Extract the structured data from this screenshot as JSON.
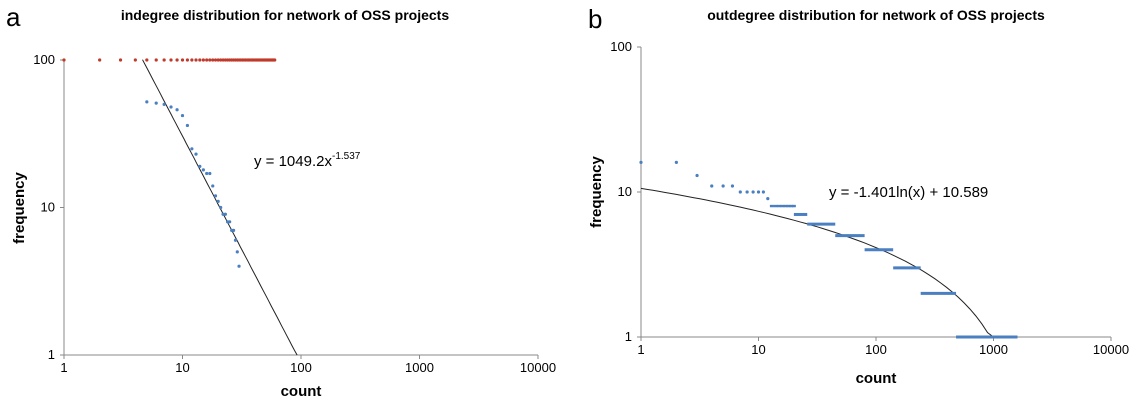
{
  "colors": {
    "blue": "#4a7fc1",
    "red": "#c0392b",
    "axis": "#888888",
    "trend": "#222222"
  },
  "chart_data": [
    {
      "panel": "a",
      "type": "scatter",
      "title": "indegree distribution for network of OSS projects",
      "xlabel": "count",
      "ylabel": "frequency",
      "xscale": "log",
      "yscale": "log",
      "xlim": [
        1,
        10000
      ],
      "ylim": [
        1,
        100
      ],
      "xticks": [
        "1",
        "10",
        "100",
        "1000",
        "10000"
      ],
      "yticks": [
        "1",
        "10",
        "100"
      ],
      "annotation": {
        "text": "y = 1049.2x",
        "sup": "-1.537"
      },
      "trendline": {
        "a": 1049.2,
        "b": -1.537,
        "x_from": 4.6,
        "x_to": 92.7
      },
      "series": [
        {
          "color": "red",
          "marker": "dot",
          "x": [
            1,
            2,
            3,
            4,
            5,
            6,
            7,
            8,
            9,
            10,
            11,
            12,
            13,
            14,
            15,
            16,
            17,
            18,
            19,
            20,
            21,
            22,
            23,
            24,
            25,
            26,
            27,
            28,
            29,
            30,
            31,
            32,
            33,
            34,
            35,
            36,
            37,
            38,
            39,
            40,
            41,
            42,
            43,
            44,
            45,
            46,
            47,
            48,
            49,
            50,
            51,
            52,
            53,
            54,
            55,
            56,
            57,
            58,
            59,
            60
          ],
          "y": [
            100,
            100,
            100,
            100,
            100,
            100,
            100,
            100,
            100,
            100,
            100,
            100,
            100,
            100,
            100,
            100,
            100,
            100,
            100,
            100,
            100,
            100,
            100,
            100,
            100,
            100,
            100,
            100,
            100,
            100,
            100,
            100,
            100,
            100,
            100,
            100,
            100,
            100,
            100,
            100,
            100,
            100,
            100,
            100,
            100,
            100,
            100,
            100,
            100,
            100,
            100,
            100,
            100,
            100,
            100,
            100,
            100,
            100,
            100,
            100
          ]
        },
        {
          "color": "blue",
          "marker": "dot",
          "x": [
            5,
            6,
            7,
            8,
            9,
            10,
            11,
            12,
            13,
            14,
            15,
            16,
            17,
            18,
            19,
            20,
            21,
            22,
            23,
            24,
            25,
            26,
            27,
            28,
            29,
            30
          ],
          "y": [
            52,
            51,
            50,
            48,
            46,
            42,
            36,
            25,
            23,
            19,
            18,
            17,
            17,
            14,
            12,
            11,
            10,
            9,
            9,
            8,
            8,
            7,
            7,
            6,
            5,
            4
          ]
        }
      ]
    },
    {
      "panel": "b",
      "type": "scatter",
      "title": "outdegree distribution for network of OSS projects",
      "xlabel": "count",
      "ylabel": "frequency",
      "xscale": "log",
      "yscale": "log",
      "xlim": [
        1,
        10000
      ],
      "ylim": [
        1,
        100
      ],
      "xticks": [
        "1",
        "10",
        "100",
        "1000",
        "10000"
      ],
      "yticks": [
        "1",
        "10",
        "100"
      ],
      "annotation": {
        "text": "y = -1.401ln(x) + 10.589",
        "sup": ""
      },
      "trendline": {
        "a": -1.401,
        "b": 10.589,
        "x_from": 1,
        "x_to": 1000
      },
      "series": [
        {
          "color": "blue",
          "marker": "dot",
          "x": [
            1,
            2,
            3,
            4,
            5,
            6,
            7,
            8,
            9,
            10,
            11,
            12
          ],
          "y": [
            16,
            16,
            13,
            11,
            11,
            11,
            10,
            10,
            10,
            10,
            10,
            9
          ]
        },
        {
          "color": "blue",
          "marker": "dash",
          "x": [
            13,
            14,
            15,
            16,
            17,
            18,
            19,
            20
          ],
          "y": [
            8,
            8,
            8,
            8,
            8,
            8,
            8,
            8
          ]
        },
        {
          "color": "blue",
          "marker": "segment",
          "segments": [
            {
              "x1": 20,
              "x2": 26,
              "y": 7
            },
            {
              "x1": 26,
              "x2": 45,
              "y": 6
            },
            {
              "x1": 45,
              "x2": 80,
              "y": 5
            },
            {
              "x1": 80,
              "x2": 140,
              "y": 4
            },
            {
              "x1": 140,
              "x2": 240,
              "y": 3
            },
            {
              "x1": 240,
              "x2": 480,
              "y": 2
            },
            {
              "x1": 480,
              "x2": 1600,
              "y": 1
            }
          ]
        }
      ]
    }
  ]
}
